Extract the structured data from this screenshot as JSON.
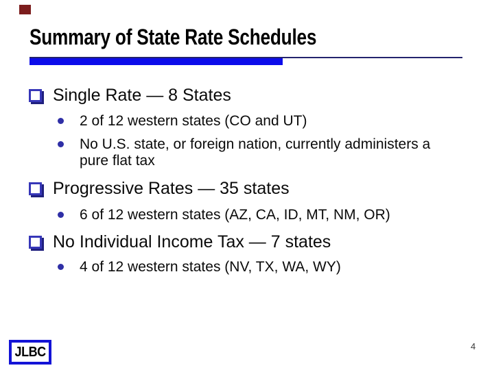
{
  "slide": {
    "title": "Summary of State Rate Schedules",
    "page_number": "4",
    "logo_label": "JLBC",
    "colors": {
      "accent_bar": "#0c0cea",
      "rule_line": "#23236d",
      "checkbox_border": "#3737b8",
      "checkbox_shadow": "#20207e",
      "sub_bullet_dot": "#2f2fa6",
      "logo_border": "#1313d6",
      "corner_mark": "#7c1d1d",
      "text": "#0a0a0a"
    },
    "bullets": [
      {
        "label": "Single Rate — 8 States",
        "sub": [
          "2 of 12 western states (CO and UT)",
          "No U.S. state, or foreign nation, currently administers a\npure flat tax"
        ]
      },
      {
        "label": "Progressive Rates — 35 states",
        "sub": [
          "6 of 12 western states (AZ, CA, ID, MT, NM, OR)"
        ]
      },
      {
        "label": "No Individual Income Tax — 7 states",
        "sub": [
          "4 of 12 western states (NV, TX, WA, WY)"
        ]
      }
    ]
  }
}
